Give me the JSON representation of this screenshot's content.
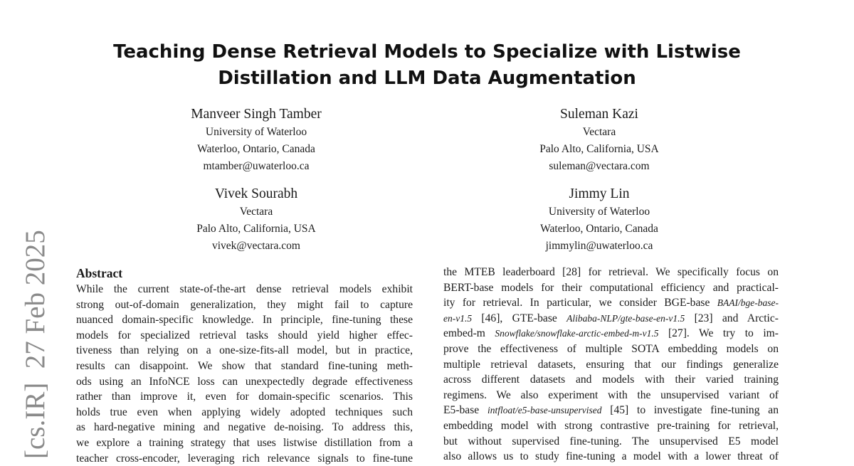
{
  "title": [
    "Teaching Dense Retrieval Models to Specialize with Listwise",
    "Distillation and LLM Data Augmentation"
  ],
  "authors": [
    {
      "name": "Manveer Singh Tamber",
      "affiliation": "University of Waterloo",
      "location": "Waterloo, Ontario, Canada",
      "email": "mtamber@uwaterloo.ca"
    },
    {
      "name": "Suleman Kazi",
      "affiliation": "Vectara",
      "location": "Palo Alto, California, USA",
      "email": "suleman@vectara.com"
    },
    {
      "name": "Vivek Sourabh",
      "affiliation": "Vectara",
      "location": "Palo Alto, California, USA",
      "email": "vivek@vectara.com"
    },
    {
      "name": "Jimmy Lin",
      "affiliation": "University of Waterloo",
      "location": "Waterloo, Ontario, Canada",
      "email": "jimmylin@uwaterloo.ca"
    }
  ],
  "arxiv_stamp": "[cs.IR]  27 Feb 2025",
  "abstract": {
    "heading": "Abstract",
    "lines": [
      "While the current state-of-the-art dense retrieval models exhibit",
      "strong out-of-domain generalization, they might fail to capture",
      "nuanced domain-specific knowledge. In principle, fine-tuning these",
      "models for specialized retrieval tasks should yield higher effec-",
      "tiveness than relying on a one-size-fits-all model, but in practice,",
      "results can disappoint. We show that standard fine-tuning meth-",
      "ods using an InfoNCE loss can unexpectedly degrade effectiveness",
      "rather than improve it, even for domain-specific scenarios. This",
      "holds true even when applying widely adopted techniques such",
      "as hard-negative mining and negative de-noising. To address this,",
      "we explore a training strategy that uses listwise distillation from a",
      "teacher cross-encoder, leveraging rich relevance signals to fine-tune"
    ]
  },
  "right_column": {
    "lines": [
      [
        {
          "t": "the MTEB leaderboard [28] for retrieval. We specifically focus on"
        }
      ],
      [
        {
          "t": "BERT-base models for their computational efficiency and practical-"
        }
      ],
      [
        {
          "t": "ity for retrieval. In particular, we consider BGE-base "
        },
        {
          "t": "BAAI/bge-base-",
          "i": true
        }
      ],
      [
        {
          "t": "en-v1.5",
          "i": true
        },
        {
          "t": " [46], GTE-base "
        },
        {
          "t": "Alibaba-NLP/gte-base-en-v1.5",
          "i": true
        },
        {
          "t": " [23] and Arctic-"
        }
      ],
      [
        {
          "t": "embed-m "
        },
        {
          "t": "Snowflake/snowflake-arctic-embed-m-v1.5",
          "i": true
        },
        {
          "t": " [27]. We try to im-"
        }
      ],
      [
        {
          "t": "prove the effectiveness of multiple SOTA embedding models on"
        }
      ],
      [
        {
          "t": "multiple retrieval datasets, ensuring that our findings generalize"
        }
      ],
      [
        {
          "t": "across different datasets and models with their varied training"
        }
      ],
      [
        {
          "t": "regimens. We also experiment with the unsupervised variant of"
        }
      ],
      [
        {
          "t": "E5-base "
        },
        {
          "t": "intfloat/e5-base-unsupervised",
          "i": true
        },
        {
          "t": " [45] to investigate fine-tuning an"
        }
      ],
      [
        {
          "t": "embedding model with strong contrastive pre-training for retrieval,"
        }
      ],
      [
        {
          "t": "but without supervised fine-tuning. The unsupervised E5 model"
        }
      ],
      [
        {
          "t": "also allows us to study fine-tuning a model with a lower threat of"
        }
      ]
    ]
  }
}
